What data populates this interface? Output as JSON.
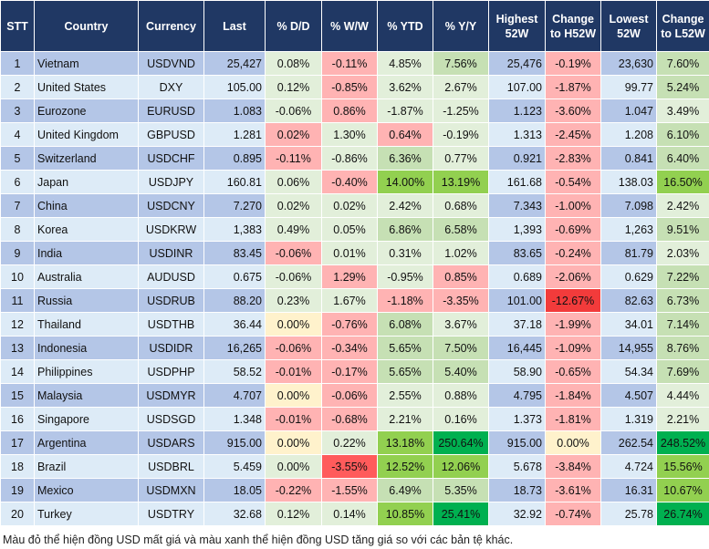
{
  "headers": [
    "STT",
    "Country",
    "Currency",
    "Last",
    "% D/D",
    "% W/W",
    "% YTD",
    "% Y/Y",
    "Highest 52W",
    "Change to H52W",
    "Lowest 52W",
    "Change to L52W"
  ],
  "colors": {
    "b1": "#b4c6e7",
    "b2": "#ddebf7",
    "lg": "#e2efda",
    "mg": "#c6e0b4",
    "g": "#92d050",
    "dg": "#00b050",
    "lp": "#ffb3b3",
    "r_": "#ff5b5b",
    "dr": "#f23b3b",
    "y": "#fff2cc",
    "header": "#203864"
  },
  "rows": [
    {
      "v": [
        "1",
        "Vietnam",
        "USDVND",
        "25,427",
        "0.08%",
        "-0.11%",
        "4.85%",
        "7.56%",
        "25,476",
        "-0.19%",
        "23,630",
        "7.60%"
      ],
      "c": [
        "lg",
        "lp",
        "lg",
        "mg",
        "lp",
        "mg"
      ]
    },
    {
      "v": [
        "2",
        "United States",
        "DXY",
        "105.00",
        "0.12%",
        "-0.85%",
        "3.62%",
        "2.67%",
        "107.00",
        "-1.87%",
        "99.77",
        "5.24%"
      ],
      "c": [
        "lg",
        "lp",
        "lg",
        "lg",
        "lp",
        "mg"
      ]
    },
    {
      "v": [
        "3",
        "Eurozone",
        "EURUSD",
        "1.083",
        "-0.06%",
        "0.86%",
        "-1.87%",
        "-1.25%",
        "1.123",
        "-3.60%",
        "1.047",
        "3.49%"
      ],
      "c": [
        "lg",
        "lp",
        "lg",
        "lg",
        "lp",
        "lg"
      ]
    },
    {
      "v": [
        "4",
        "United Kingdom",
        "GBPUSD",
        "1.281",
        "0.02%",
        "1.30%",
        "0.64%",
        "-0.19%",
        "1.313",
        "-2.45%",
        "1.208",
        "6.10%"
      ],
      "c": [
        "lp",
        "lg",
        "lp",
        "lg",
        "lp",
        "mg"
      ]
    },
    {
      "v": [
        "5",
        "Switzerland",
        "USDCHF",
        "0.895",
        "-0.11%",
        "-0.86%",
        "6.36%",
        "0.77%",
        "0.921",
        "-2.83%",
        "0.841",
        "6.40%"
      ],
      "c": [
        "lp",
        "lg",
        "mg",
        "lg",
        "lp",
        "mg"
      ]
    },
    {
      "v": [
        "6",
        "Japan",
        "USDJPY",
        "160.81",
        "0.06%",
        "-0.40%",
        "14.00%",
        "13.19%",
        "161.68",
        "-0.54%",
        "138.03",
        "16.50%"
      ],
      "c": [
        "lg",
        "lp",
        "g",
        "g",
        "lp",
        "g"
      ]
    },
    {
      "v": [
        "7",
        "China",
        "USDCNY",
        "7.270",
        "0.02%",
        "0.02%",
        "2.42%",
        "0.68%",
        "7.343",
        "-1.00%",
        "7.098",
        "2.42%"
      ],
      "c": [
        "lg",
        "lg",
        "lg",
        "lg",
        "lp",
        "lg"
      ]
    },
    {
      "v": [
        "8",
        "Korea",
        "USDKRW",
        "1,383",
        "0.49%",
        "0.05%",
        "6.86%",
        "6.58%",
        "1,393",
        "-0.69%",
        "1,263",
        "9.51%"
      ],
      "c": [
        "lg",
        "lg",
        "mg",
        "mg",
        "lp",
        "mg"
      ]
    },
    {
      "v": [
        "9",
        "India",
        "USDINR",
        "83.45",
        "-0.06%",
        "0.01%",
        "0.31%",
        "1.02%",
        "83.65",
        "-0.24%",
        "81.79",
        "2.03%"
      ],
      "c": [
        "lp",
        "lg",
        "lg",
        "lg",
        "lp",
        "lg"
      ]
    },
    {
      "v": [
        "10",
        "Australia",
        "AUDUSD",
        "0.675",
        "-0.06%",
        "1.29%",
        "-0.95%",
        "0.85%",
        "0.689",
        "-2.06%",
        "0.629",
        "7.22%"
      ],
      "c": [
        "lg",
        "lp",
        "lg",
        "lp",
        "lp",
        "mg"
      ]
    },
    {
      "v": [
        "11",
        "Russia",
        "USDRUB",
        "88.20",
        "0.23%",
        "1.67%",
        "-1.18%",
        "-3.35%",
        "101.00",
        "-12.67%",
        "82.63",
        "6.73%"
      ],
      "c": [
        "lg",
        "lg",
        "lp",
        "lp",
        "dr",
        "mg"
      ]
    },
    {
      "v": [
        "12",
        "Thailand",
        "USDTHB",
        "36.44",
        "0.00%",
        "-0.76%",
        "6.08%",
        "3.67%",
        "37.18",
        "-1.99%",
        "34.01",
        "7.14%"
      ],
      "c": [
        "y",
        "lp",
        "mg",
        "lg",
        "lp",
        "mg"
      ]
    },
    {
      "v": [
        "13",
        "Indonesia",
        "USDIDR",
        "16,265",
        "-0.06%",
        "-0.34%",
        "5.65%",
        "7.50%",
        "16,445",
        "-1.09%",
        "14,955",
        "8.76%"
      ],
      "c": [
        "lp",
        "lp",
        "mg",
        "mg",
        "lp",
        "mg"
      ]
    },
    {
      "v": [
        "14",
        "Philippines",
        "USDPHP",
        "58.52",
        "-0.01%",
        "-0.17%",
        "5.65%",
        "5.40%",
        "58.90",
        "-0.65%",
        "54.34",
        "7.69%"
      ],
      "c": [
        "lp",
        "lp",
        "mg",
        "mg",
        "lp",
        "mg"
      ]
    },
    {
      "v": [
        "15",
        "Malaysia",
        "USDMYR",
        "4.707",
        "0.00%",
        "-0.06%",
        "2.55%",
        "0.88%",
        "4.795",
        "-1.84%",
        "4.507",
        "4.44%"
      ],
      "c": [
        "y",
        "lp",
        "lg",
        "lg",
        "lp",
        "lg"
      ]
    },
    {
      "v": [
        "16",
        "Singapore",
        "USDSGD",
        "1.348",
        "-0.01%",
        "-0.68%",
        "2.21%",
        "0.16%",
        "1.373",
        "-1.81%",
        "1.319",
        "2.21%"
      ],
      "c": [
        "lp",
        "lp",
        "lg",
        "lg",
        "lp",
        "lg"
      ]
    },
    {
      "v": [
        "17",
        "Argentina",
        "USDARS",
        "915.00",
        "0.00%",
        "0.22%",
        "13.18%",
        "250.64%",
        "915.00",
        "0.00%",
        "262.54",
        "248.52%"
      ],
      "c": [
        "y",
        "lg",
        "g",
        "dg",
        "y",
        "dg"
      ]
    },
    {
      "v": [
        "18",
        "Brazil",
        "USDBRL",
        "5.459",
        "0.00%",
        "-3.55%",
        "12.52%",
        "12.06%",
        "5.678",
        "-3.84%",
        "4.724",
        "15.56%"
      ],
      "c": [
        "lg",
        "r_",
        "g",
        "g",
        "lp",
        "g"
      ]
    },
    {
      "v": [
        "19",
        "Mexico",
        "USDMXN",
        "18.05",
        "-0.22%",
        "-1.55%",
        "6.49%",
        "5.35%",
        "18.73",
        "-3.61%",
        "16.31",
        "10.67%"
      ],
      "c": [
        "lp",
        "lp",
        "mg",
        "mg",
        "lp",
        "g"
      ]
    },
    {
      "v": [
        "20",
        "Turkey",
        "USDTRY",
        "32.68",
        "0.12%",
        "0.14%",
        "10.85%",
        "25.41%",
        "32.92",
        "-0.74%",
        "25.78",
        "26.74%"
      ],
      "c": [
        "lg",
        "lg",
        "g",
        "dg",
        "lp",
        "dg"
      ]
    }
  ],
  "footnote": "Màu đỏ thể hiện đồng USD mất giá và màu xanh thể hiện đồng USD tăng giá so với các bản tệ khác."
}
